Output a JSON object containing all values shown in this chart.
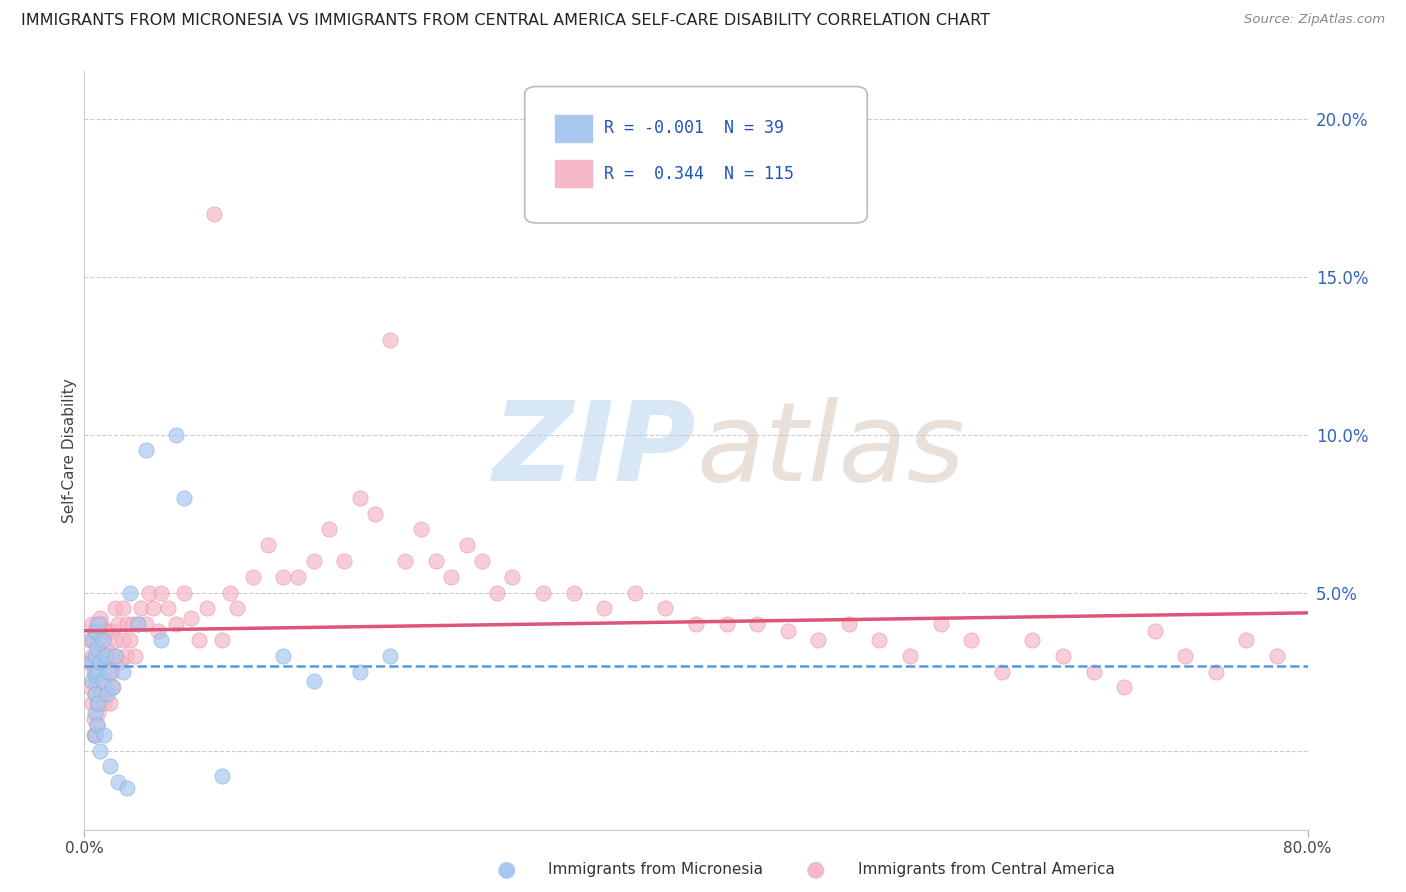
{
  "title": "IMMIGRANTS FROM MICRONESIA VS IMMIGRANTS FROM CENTRAL AMERICA SELF-CARE DISABILITY CORRELATION CHART",
  "source": "Source: ZipAtlas.com",
  "ylabel": "Self-Care Disability",
  "xlim": [
    0.0,
    0.8
  ],
  "ylim": [
    -0.025,
    0.215
  ],
  "yticks": [
    0.0,
    0.05,
    0.1,
    0.15,
    0.2
  ],
  "ytick_labels": [
    "",
    "5.0%",
    "10.0%",
    "15.0%",
    "20.0%"
  ],
  "series1_color": "#a8c8f0",
  "series1_edge": "#7aaad8",
  "series1_label": "Immigrants from Micronesia",
  "series1_R": -0.001,
  "series1_N": 39,
  "series2_color": "#f5b8c8",
  "series2_edge": "#e88aa0",
  "series2_label": "Immigrants from Central America",
  "series2_R": 0.344,
  "series2_N": 115,
  "trendline1_color": "#5599dd",
  "trendline2_color": "#dd5577",
  "micronesia_x": [
    0.005,
    0.005,
    0.005,
    0.007,
    0.007,
    0.007,
    0.007,
    0.007,
    0.007,
    0.008,
    0.008,
    0.008,
    0.009,
    0.009,
    0.01,
    0.01,
    0.012,
    0.012,
    0.013,
    0.014,
    0.015,
    0.016,
    0.017,
    0.018,
    0.02,
    0.022,
    0.025,
    0.028,
    0.03,
    0.035,
    0.04,
    0.05,
    0.06,
    0.065,
    0.09,
    0.13,
    0.15,
    0.18,
    0.2
  ],
  "micronesia_y": [
    0.035,
    0.028,
    0.022,
    0.038,
    0.03,
    0.024,
    0.018,
    0.012,
    0.005,
    0.032,
    0.025,
    0.008,
    0.04,
    0.015,
    0.028,
    0.0,
    0.035,
    0.022,
    0.005,
    0.03,
    0.018,
    0.025,
    -0.005,
    0.02,
    0.03,
    -0.01,
    0.025,
    -0.012,
    0.05,
    0.04,
    0.095,
    0.035,
    0.1,
    0.08,
    -0.008,
    0.03,
    0.022,
    0.025,
    0.03
  ],
  "central_x": [
    0.003,
    0.004,
    0.004,
    0.005,
    0.005,
    0.005,
    0.006,
    0.006,
    0.006,
    0.006,
    0.007,
    0.007,
    0.007,
    0.007,
    0.007,
    0.008,
    0.008,
    0.008,
    0.008,
    0.009,
    0.009,
    0.009,
    0.01,
    0.01,
    0.01,
    0.011,
    0.011,
    0.011,
    0.012,
    0.012,
    0.013,
    0.013,
    0.014,
    0.014,
    0.015,
    0.015,
    0.016,
    0.016,
    0.017,
    0.017,
    0.018,
    0.018,
    0.019,
    0.02,
    0.02,
    0.021,
    0.022,
    0.023,
    0.025,
    0.025,
    0.027,
    0.028,
    0.03,
    0.032,
    0.033,
    0.035,
    0.037,
    0.04,
    0.042,
    0.045,
    0.048,
    0.05,
    0.055,
    0.06,
    0.065,
    0.07,
    0.075,
    0.08,
    0.085,
    0.09,
    0.095,
    0.1,
    0.11,
    0.12,
    0.13,
    0.14,
    0.15,
    0.16,
    0.17,
    0.18,
    0.19,
    0.2,
    0.21,
    0.22,
    0.23,
    0.24,
    0.25,
    0.26,
    0.27,
    0.28,
    0.3,
    0.32,
    0.34,
    0.36,
    0.38,
    0.4,
    0.42,
    0.44,
    0.46,
    0.48,
    0.5,
    0.52,
    0.54,
    0.56,
    0.58,
    0.6,
    0.62,
    0.64,
    0.66,
    0.68,
    0.7,
    0.72,
    0.74,
    0.76,
    0.78
  ],
  "central_y": [
    0.028,
    0.02,
    0.035,
    0.015,
    0.03,
    0.04,
    0.01,
    0.025,
    0.035,
    0.005,
    0.018,
    0.028,
    0.038,
    0.005,
    0.022,
    0.015,
    0.03,
    0.04,
    0.008,
    0.025,
    0.035,
    0.012,
    0.02,
    0.032,
    0.042,
    0.018,
    0.03,
    0.04,
    0.022,
    0.035,
    0.015,
    0.03,
    0.025,
    0.038,
    0.02,
    0.032,
    0.028,
    0.038,
    0.015,
    0.03,
    0.025,
    0.038,
    0.02,
    0.035,
    0.045,
    0.03,
    0.04,
    0.028,
    0.035,
    0.045,
    0.03,
    0.04,
    0.035,
    0.04,
    0.03,
    0.04,
    0.045,
    0.04,
    0.05,
    0.045,
    0.038,
    0.05,
    0.045,
    0.04,
    0.05,
    0.042,
    0.035,
    0.045,
    0.17,
    0.035,
    0.05,
    0.045,
    0.055,
    0.065,
    0.055,
    0.055,
    0.06,
    0.07,
    0.06,
    0.08,
    0.075,
    0.13,
    0.06,
    0.07,
    0.06,
    0.055,
    0.065,
    0.06,
    0.05,
    0.055,
    0.05,
    0.05,
    0.045,
    0.05,
    0.045,
    0.04,
    0.04,
    0.04,
    0.038,
    0.035,
    0.04,
    0.035,
    0.03,
    0.04,
    0.035,
    0.025,
    0.035,
    0.03,
    0.025,
    0.02,
    0.038,
    0.03,
    0.025,
    0.035,
    0.03
  ]
}
